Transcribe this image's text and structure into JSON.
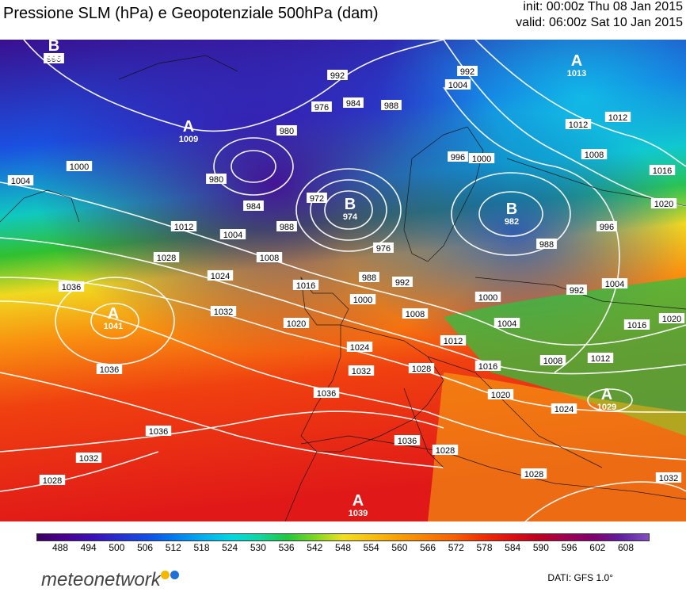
{
  "header": {
    "title": "Pressione SLM (hPa) e Geopotenziale 500hPa (dam)",
    "init": "init: 00:00z Thu 08 Jan 2015",
    "valid": "valid: 06:00z Sat 10 Jan 2015"
  },
  "isobar_labels": [
    {
      "text": "996"
    },
    {
      "text": "1004"
    },
    {
      "text": "1000"
    },
    {
      "text": "992"
    },
    {
      "text": "980"
    },
    {
      "text": "976"
    },
    {
      "text": "984"
    },
    {
      "text": "988"
    },
    {
      "text": "992"
    },
    {
      "text": "1004"
    },
    {
      "text": "1000"
    },
    {
      "text": "996"
    },
    {
      "text": "1012"
    },
    {
      "text": "1012"
    },
    {
      "text": "1008"
    },
    {
      "text": "1016"
    },
    {
      "text": "1020"
    },
    {
      "text": "980"
    },
    {
      "text": "984"
    },
    {
      "text": "988"
    },
    {
      "text": "972"
    },
    {
      "text": "976"
    },
    {
      "text": "988"
    },
    {
      "text": "996"
    },
    {
      "text": "1012"
    },
    {
      "text": "1004"
    },
    {
      "text": "1008"
    },
    {
      "text": "1016"
    },
    {
      "text": "1028"
    },
    {
      "text": "1024"
    },
    {
      "text": "1036"
    },
    {
      "text": "1032"
    },
    {
      "text": "1020"
    },
    {
      "text": "988"
    },
    {
      "text": "992"
    },
    {
      "text": "1000"
    },
    {
      "text": "1000"
    },
    {
      "text": "1008"
    },
    {
      "text": "1012"
    },
    {
      "text": "1004"
    },
    {
      "text": "992"
    },
    {
      "text": "1004"
    },
    {
      "text": "1016"
    },
    {
      "text": "1020"
    },
    {
      "text": "1008"
    },
    {
      "text": "1012"
    },
    {
      "text": "1024"
    },
    {
      "text": "1028"
    },
    {
      "text": "1032"
    },
    {
      "text": "1016"
    },
    {
      "text": "1020"
    },
    {
      "text": "1024"
    },
    {
      "text": "1036"
    },
    {
      "text": "1036"
    },
    {
      "text": "1036"
    },
    {
      "text": "1036"
    },
    {
      "text": "1032"
    },
    {
      "text": "1028"
    },
    {
      "text": "1028"
    },
    {
      "text": "1028"
    },
    {
      "text": "1032"
    }
  ],
  "centers": [
    {
      "letter": "B",
      "value": "996"
    },
    {
      "letter": "A",
      "value": "1009"
    },
    {
      "letter": "B",
      "value": "974"
    },
    {
      "letter": "A",
      "value": "1013"
    },
    {
      "letter": "B",
      "value": "982"
    },
    {
      "letter": "A",
      "value": "1041"
    },
    {
      "letter": "A",
      "value": "1029"
    },
    {
      "letter": "A",
      "value": "1039"
    }
  ],
  "colorbar": {
    "ticks": [
      "488",
      "494",
      "500",
      "506",
      "512",
      "518",
      "524",
      "530",
      "536",
      "542",
      "548",
      "554",
      "560",
      "566",
      "572",
      "578",
      "584",
      "590",
      "596",
      "602",
      "608"
    ],
    "colors": [
      "#3a0060",
      "#4a0090",
      "#3a10b8",
      "#2830d0",
      "#1050e8",
      "#0080f0",
      "#00b0f0",
      "#00d8e0",
      "#10d8a0",
      "#20c840",
      "#80d820",
      "#f0e020",
      "#f8c010",
      "#f8a000",
      "#f88000",
      "#f86000",
      "#f03000",
      "#e01010",
      "#c00020",
      "#a00050",
      "#800070",
      "#6020a0",
      "#8050c0"
    ]
  },
  "footer": {
    "logo_text": "meteonetwork",
    "source": "DATI: GFS 1.0°"
  }
}
